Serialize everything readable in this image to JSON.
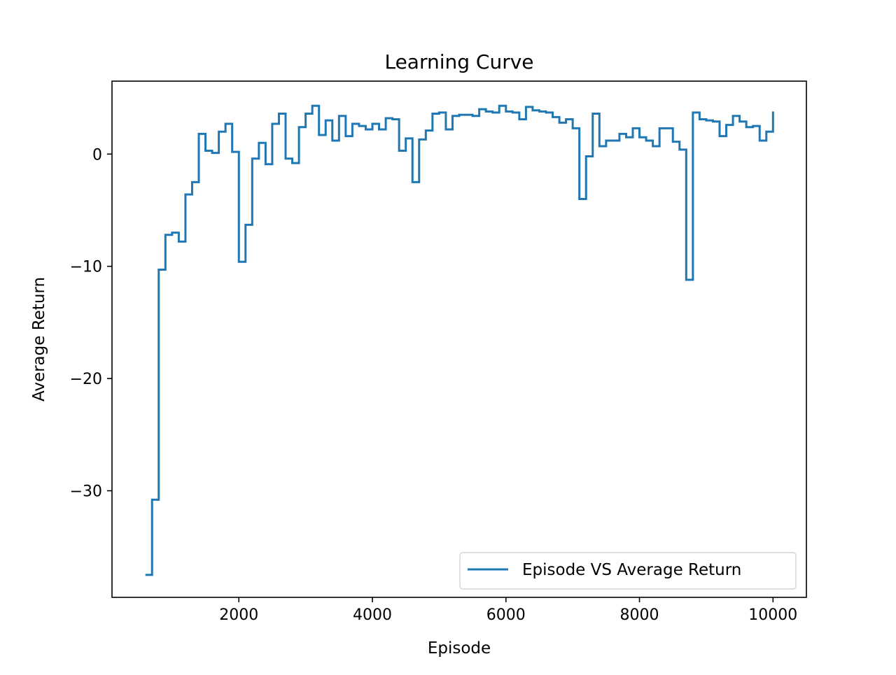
{
  "chart_data": {
    "type": "line",
    "step": "post",
    "title": "Learning Curve",
    "xlabel": "Episode",
    "ylabel": "Average Return",
    "xlim": [
      100,
      10500
    ],
    "ylim": [
      -39.5,
      6.5
    ],
    "xticks": [
      2000,
      4000,
      6000,
      8000,
      10000
    ],
    "xtick_labels": [
      "2000",
      "4000",
      "6000",
      "8000",
      "10000"
    ],
    "yticks": [
      0,
      -10,
      -20,
      -30
    ],
    "ytick_labels": [
      "0",
      "−10",
      "−20",
      "−30"
    ],
    "grid": false,
    "legend_position": "lower-right",
    "series": [
      {
        "name": "Episode VS Average Return",
        "color": "#1f77b4",
        "x": [
          600,
          700,
          800,
          900,
          1000,
          1100,
          1200,
          1300,
          1400,
          1500,
          1600,
          1700,
          1800,
          1900,
          2000,
          2100,
          2200,
          2300,
          2400,
          2500,
          2600,
          2700,
          2800,
          2900,
          3000,
          3100,
          3200,
          3300,
          3400,
          3500,
          3600,
          3700,
          3800,
          3900,
          4000,
          4100,
          4200,
          4300,
          4400,
          4500,
          4600,
          4700,
          4800,
          4900,
          5000,
          5100,
          5200,
          5300,
          5400,
          5500,
          5600,
          5700,
          5800,
          5900,
          6000,
          6100,
          6200,
          6300,
          6400,
          6500,
          6600,
          6700,
          6800,
          6900,
          7000,
          7100,
          7200,
          7300,
          7400,
          7500,
          7600,
          7700,
          7800,
          7900,
          8000,
          8100,
          8200,
          8300,
          8400,
          8500,
          8600,
          8700,
          8800,
          8900,
          9000,
          9100,
          9200,
          9300,
          9400,
          9500,
          9600,
          9700,
          9800,
          9900,
          10000
        ],
        "y": [
          -37.5,
          -30.8,
          -10.3,
          -7.2,
          -7.0,
          -7.8,
          -3.6,
          -2.5,
          1.8,
          0.3,
          0.1,
          2.0,
          2.7,
          0.2,
          -9.6,
          -6.3,
          -0.4,
          1.0,
          -0.9,
          2.7,
          3.6,
          -0.4,
          -0.8,
          2.4,
          3.6,
          4.3,
          1.7,
          3.0,
          1.2,
          3.4,
          1.6,
          2.7,
          2.5,
          2.2,
          2.7,
          2.2,
          3.2,
          3.1,
          0.3,
          1.4,
          -2.5,
          1.3,
          2.1,
          3.6,
          3.7,
          2.2,
          3.4,
          3.5,
          3.5,
          3.4,
          4.0,
          3.8,
          3.7,
          4.3,
          3.8,
          3.7,
          3.1,
          4.2,
          3.9,
          3.8,
          3.7,
          3.3,
          2.8,
          3.1,
          2.3,
          -4.0,
          -0.2,
          3.6,
          0.7,
          1.2,
          1.2,
          1.8,
          1.5,
          2.3,
          1.5,
          1.2,
          0.7,
          2.3,
          2.3,
          1.1,
          0.4,
          -11.2,
          3.7,
          3.1,
          3.0,
          2.9,
          1.6,
          2.6,
          3.4,
          2.9,
          2.4,
          2.5,
          1.2,
          2.0,
          3.8
        ]
      }
    ]
  }
}
